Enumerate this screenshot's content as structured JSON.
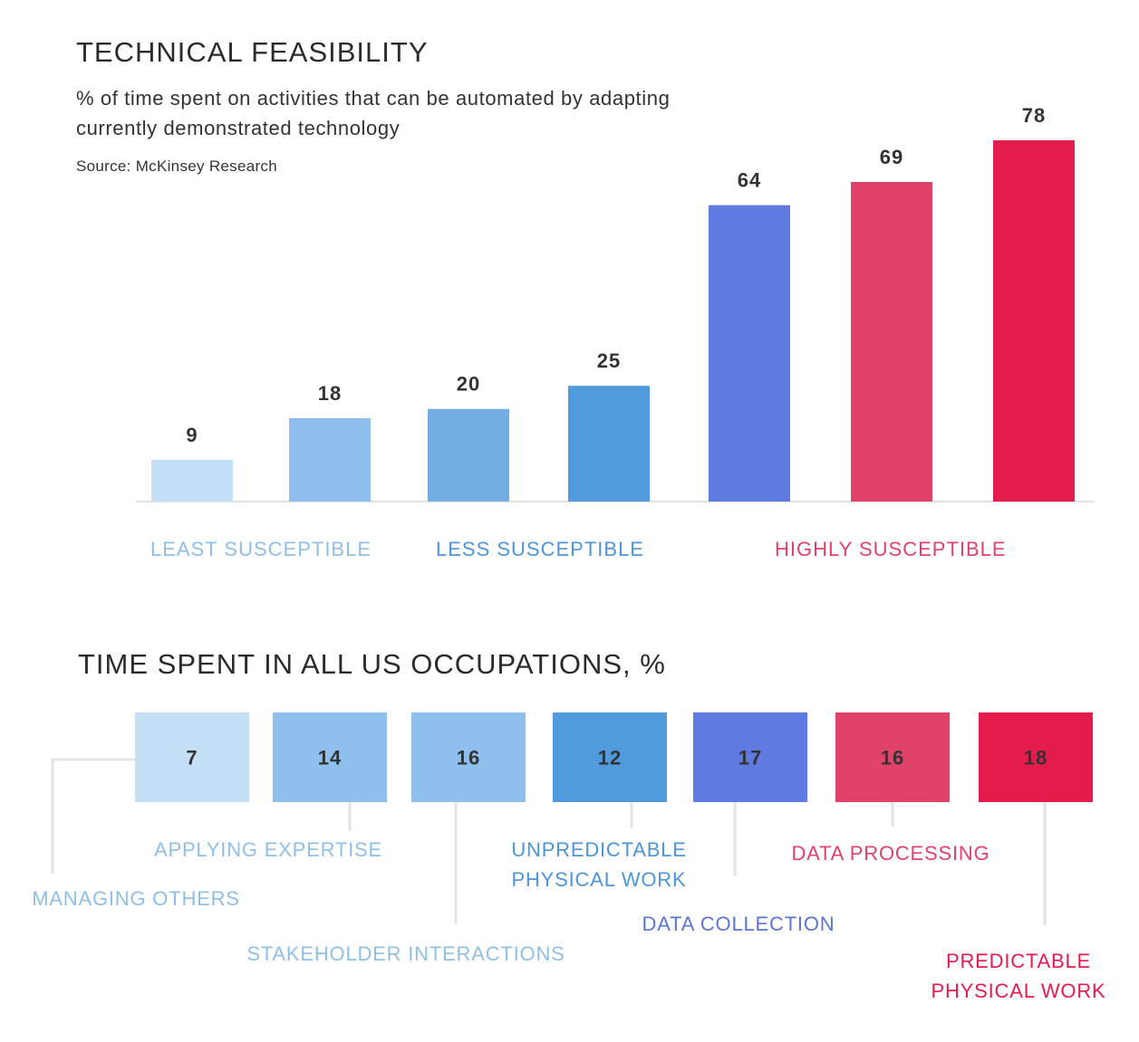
{
  "chart_data": [
    {
      "type": "bar",
      "title": "TECHNICAL FEASIBILITY",
      "subtitle": "% of time spent on activities that can be automated by adapting currently demonstrated technology",
      "source": "Source: McKinsey Research",
      "values": [
        9,
        18,
        20,
        25,
        64,
        69,
        78
      ],
      "colors": [
        "#c4dff6",
        "#8fbfec",
        "#72aee4",
        "#529ade",
        "#5f7be1",
        "#e0426a",
        "#e31c4d"
      ],
      "ylim": [
        0,
        80
      ],
      "groups": [
        {
          "label": "LEAST SUSCEPTIBLE",
          "color": "#8fbfe6"
        },
        {
          "label": "LESS SUSCEPTIBLE",
          "color": "#4d95d8"
        },
        {
          "label": "HIGHLY SUSCEPTIBLE",
          "color": "#e0426a"
        }
      ]
    },
    {
      "type": "table",
      "title": "TIME SPENT IN ALL US OCCUPATIONS, %",
      "categories": [
        "MANAGING OTHERS",
        "APPLYING EXPERTISE",
        "STAKEHOLDER INTERACTIONS",
        "UNPREDICTABLE PHYSICAL WORK",
        "DATA COLLECTION",
        "DATA PROCESSING",
        "PREDICTABLE PHYSICAL WORK"
      ],
      "values": [
        7,
        14,
        16,
        12,
        17,
        16,
        18
      ],
      "tile_colors": [
        "#c4dff6",
        "#8fbfec",
        "#8fbfec",
        "#529ade",
        "#5f7be1",
        "#e0426a",
        "#e31c4d"
      ],
      "label_colors": [
        "#8fbfe6",
        "#8fbfe6",
        "#8fbfe6",
        "#4d95d8",
        "#5b74d6",
        "#e0426a",
        "#e31c4d"
      ],
      "label_lines": [
        [
          "MANAGING OTHERS"
        ],
        [
          "APPLYING EXPERTISE"
        ],
        [
          "STAKEHOLDER INTERACTIONS"
        ],
        [
          "UNPREDICTABLE",
          "PHYSICAL WORK"
        ],
        [
          "DATA COLLECTION"
        ],
        [
          "DATA PROCESSING"
        ],
        [
          "PREDICTABLE",
          "PHYSICAL WORK"
        ]
      ]
    }
  ]
}
